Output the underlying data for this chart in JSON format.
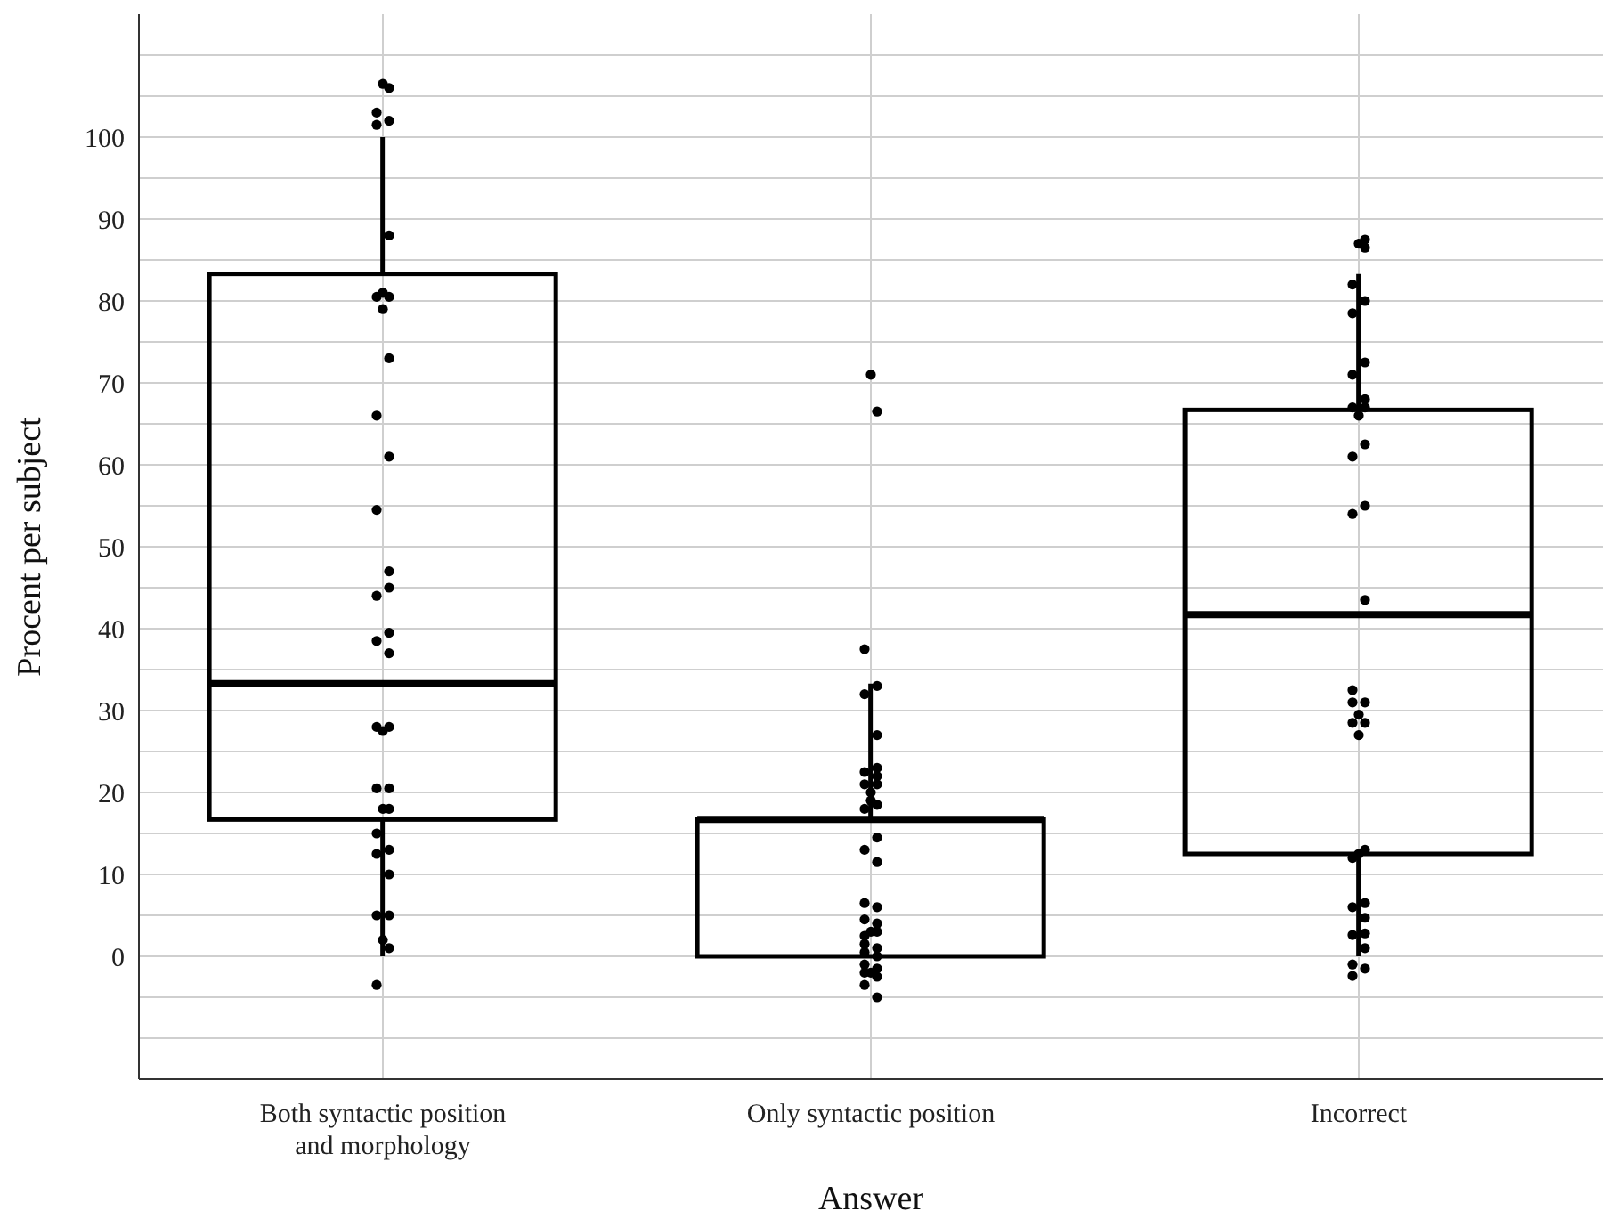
{
  "chart_data": {
    "type": "box",
    "xlabel": "Answer",
    "ylabel": "Procent per subject",
    "categories": [
      "Both syntactic position and morphology",
      "Only syntactic position",
      "Incorrect"
    ],
    "series": [
      {
        "color": "#000000",
        "boxes": [
          {
            "low": 0,
            "q1": 16.7,
            "median": 33.3,
            "q3": 83.3,
            "high": 100
          },
          {
            "low": 0,
            "q1": 0,
            "median": 16.7,
            "q3": 16.7,
            "high": 33.3
          },
          {
            "low": 0,
            "q1": 12.5,
            "median": 41.7,
            "q3": 66.7,
            "high": 83.3
          }
        ]
      },
      {
        "type": "scatter",
        "color": "#000000",
        "marker": "circle",
        "x": [
          "Both syntactic position and morphology",
          "Both syntactic position and morphology",
          "Both syntactic position and morphology",
          "Both syntactic position and morphology",
          "Both syntactic position and morphology",
          "Both syntactic position and morphology",
          "Both syntactic position and morphology",
          "Both syntactic position and morphology",
          "Both syntactic position and morphology",
          "Both syntactic position and morphology",
          "Both syntactic position and morphology",
          "Both syntactic position and morphology",
          "Both syntactic position and morphology",
          "Both syntactic position and morphology",
          "Both syntactic position and morphology",
          "Both syntactic position and morphology",
          "Both syntactic position and morphology",
          "Both syntactic position and morphology",
          "Both syntactic position and morphology",
          "Both syntactic position and morphology",
          "Both syntactic position and morphology",
          "Both syntactic position and morphology",
          "Both syntactic position and morphology",
          "Both syntactic position and morphology",
          "Both syntactic position and morphology",
          "Both syntactic position and morphology",
          "Both syntactic position and morphology",
          "Both syntactic position and morphology",
          "Both syntactic position and morphology",
          "Both syntactic position and morphology",
          "Both syntactic position and morphology",
          "Both syntactic position and morphology",
          "Both syntactic position and morphology",
          "Both syntactic position and morphology",
          "Both syntactic position and morphology",
          "Both syntactic position and morphology",
          "Only syntactic position",
          "Only syntactic position",
          "Only syntactic position",
          "Only syntactic position",
          "Only syntactic position",
          "Only syntactic position",
          "Only syntactic position",
          "Only syntactic position",
          "Only syntactic position",
          "Only syntactic position",
          "Only syntactic position",
          "Only syntactic position",
          "Only syntactic position",
          "Only syntactic position",
          "Only syntactic position",
          "Only syntactic position",
          "Only syntactic position",
          "Only syntactic position",
          "Only syntactic position",
          "Only syntactic position",
          "Only syntactic position",
          "Only syntactic position",
          "Only syntactic position",
          "Only syntactic position",
          "Only syntactic position",
          "Only syntactic position",
          "Only syntactic position",
          "Only syntactic position",
          "Only syntactic position",
          "Only syntactic position",
          "Only syntactic position",
          "Only syntactic position",
          "Only syntactic position",
          "Only syntactic position",
          "Only syntactic position",
          "Only syntactic position",
          "Incorrect",
          "Incorrect",
          "Incorrect",
          "Incorrect",
          "Incorrect",
          "Incorrect",
          "Incorrect",
          "Incorrect",
          "Incorrect",
          "Incorrect",
          "Incorrect",
          "Incorrect",
          "Incorrect",
          "Incorrect",
          "Incorrect",
          "Incorrect",
          "Incorrect",
          "Incorrect",
          "Incorrect",
          "Incorrect",
          "Incorrect",
          "Incorrect",
          "Incorrect",
          "Incorrect",
          "Incorrect",
          "Incorrect",
          "Incorrect",
          "Incorrect",
          "Incorrect",
          "Incorrect",
          "Incorrect",
          "Incorrect",
          "Incorrect",
          "Incorrect",
          "Incorrect",
          "Incorrect"
        ],
        "values": [
          106.5,
          106,
          103,
          102,
          101.5,
          88,
          80.5,
          80.5,
          81,
          79,
          73,
          66,
          61,
          54.5,
          47,
          44,
          45,
          39.5,
          38.5,
          37,
          28,
          28,
          27.5,
          20.5,
          20.5,
          18,
          18,
          15,
          13,
          12.5,
          10,
          5,
          5,
          2,
          1,
          -3.5,
          71,
          66.5,
          37.5,
          33,
          32,
          27,
          21,
          22,
          22.5,
          23,
          21,
          19,
          20,
          18.5,
          18,
          14.5,
          13,
          11.5,
          6.5,
          6,
          4.5,
          3,
          4,
          2.5,
          1,
          0.5,
          0,
          -1,
          -1.5,
          -2,
          -2,
          -2.5,
          -3.5,
          -5,
          1.5,
          3,
          87,
          87.5,
          86.5,
          82,
          80,
          78.5,
          72.5,
          71,
          68,
          67,
          67,
          66,
          62.5,
          61,
          55,
          54,
          43.5,
          32.5,
          31,
          31,
          29.5,
          28.5,
          28.5,
          27,
          13,
          12,
          6.5,
          6,
          4.7,
          2.6,
          2.8,
          1,
          -1,
          -1.5,
          -2.4,
          12.5
        ]
      }
    ],
    "ylim": [
      -15,
      115
    ],
    "yticks": [
      {
        "value": -10,
        "label": null
      },
      {
        "value": -5,
        "label": null
      },
      0,
      {
        "value": 5,
        "label": null
      },
      10,
      {
        "value": 15,
        "label": null
      },
      20,
      {
        "value": 25,
        "label": null
      },
      30,
      {
        "value": 35,
        "label": null
      },
      40,
      {
        "value": 45,
        "label": null
      },
      50,
      {
        "value": 55,
        "label": null
      },
      60,
      {
        "value": 65,
        "label": null
      },
      70,
      {
        "value": 75,
        "label": null
      },
      80,
      {
        "value": 85,
        "label": null
      },
      90,
      {
        "value": 95,
        "label": null
      },
      100,
      {
        "value": 105,
        "label": null
      },
      {
        "value": 110,
        "label": null
      }
    ],
    "grid": true,
    "legend": false
  }
}
